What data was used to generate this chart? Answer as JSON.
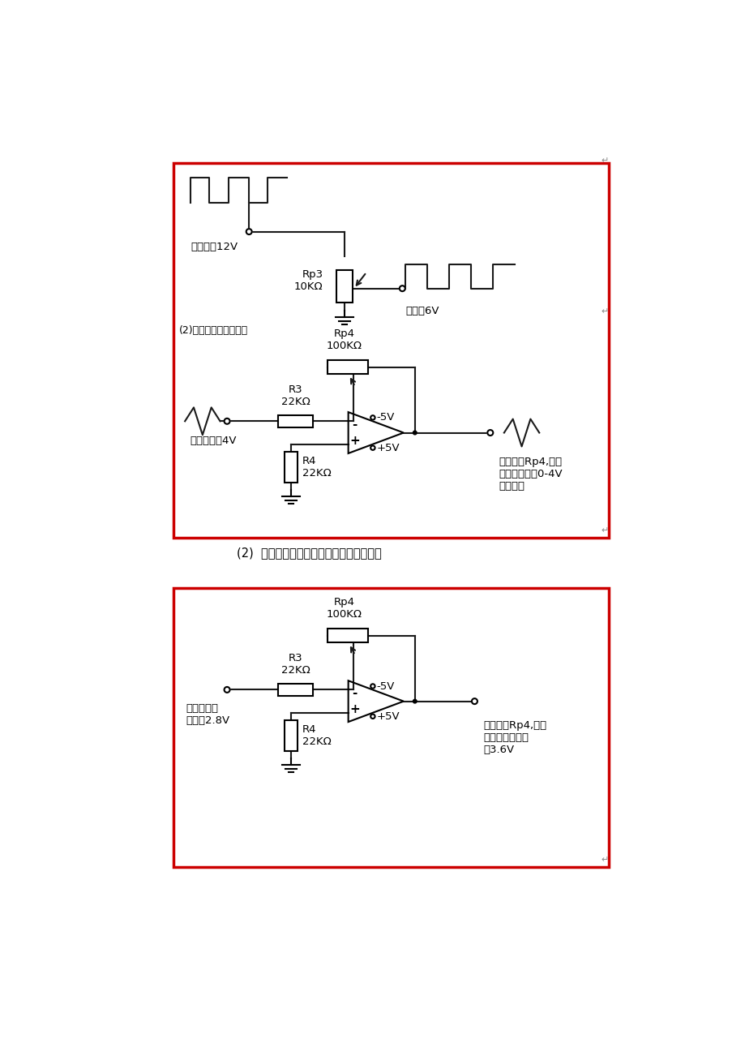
{
  "bg_color": "#ffffff",
  "box_border_color": "#cc0000",
  "line_color": "#1a1a1a",
  "label_fangbo12v": "方波峰倶12V",
  "label_fangbo6v": "方波峰6V",
  "label_rp3": "Rp3\n10KΩ",
  "label_triangle_sub": "(2)三角波峰値连续可调",
  "label_rp4_b1": "Rp4\n100KΩ",
  "label_r3_b1": "R3\n22KΩ",
  "label_r4_b1": "R4\n22KΩ",
  "label_triangle_peak": "三角波峰值4V",
  "label_neg5v": "-5V",
  "label_pos5v": "+5V",
  "label_b1_right": "通过调节Rp4,使得\n三角波峰値在0-4V\n连续可调",
  "label_between": "(2)  正弦波也可以通过负反馈电路适当放大",
  "label_rp4_b2": "Rp4\n100KΩ",
  "label_r3_b2": "R3\n22KΩ",
  "label_r4_b2": "R4\n22KΩ",
  "label_sine_in": "正弦波输入\n峰値为2.8V",
  "label_b2_right": "通过调节Rp4,使得\n正弦波峰値可达\n到3.6V"
}
